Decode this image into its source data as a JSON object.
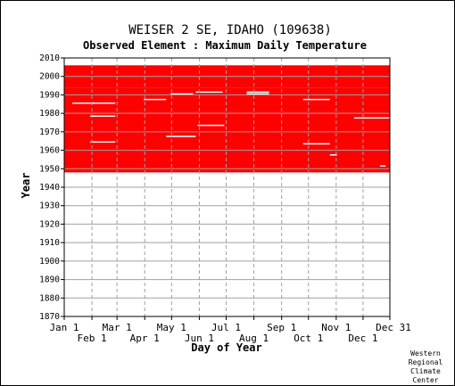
{
  "chart_data": {
    "type": "heatmap",
    "title": "WEISER 2 SE, IDAHO   (109638)",
    "subtitle": "Observed Element : Maximum Daily Temperature",
    "xlabel": "Day of Year",
    "ylabel": "Year",
    "ylim": [
      1870,
      2010
    ],
    "yticks": [
      1870,
      1880,
      1890,
      1900,
      1910,
      1920,
      1930,
      1940,
      1950,
      1960,
      1970,
      1980,
      1990,
      2000,
      2010
    ],
    "xlim": [
      1,
      365
    ],
    "xticks_top_row": [
      {
        "label": "Jan 1",
        "day": 1
      },
      {
        "label": "Mar 1",
        "day": 60
      },
      {
        "label": "May 1",
        "day": 121
      },
      {
        "label": "Jul 1",
        "day": 182
      },
      {
        "label": "Sep 1",
        "day": 244
      },
      {
        "label": "Nov 1",
        "day": 305
      },
      {
        "label": "Dec 31",
        "day": 365
      }
    ],
    "xticks_bottom_row": [
      {
        "label": "Feb 1",
        "day": 32
      },
      {
        "label": "Apr 1",
        "day": 91
      },
      {
        "label": "Jun 1",
        "day": 152
      },
      {
        "label": "Aug 1",
        "day": 213
      },
      {
        "label": "Oct 1",
        "day": 274
      },
      {
        "label": "Dec 1",
        "day": 335
      }
    ],
    "grid": true,
    "color_present": "#ff0000",
    "color_background": "#ffffff",
    "data_coverage": {
      "blocks": [
        {
          "start_year": 1948,
          "end_year": 1980,
          "start_day": 1,
          "end_day": 365
        },
        {
          "start_year": 1981,
          "end_year": 1993,
          "start_day": 1,
          "end_day": 365
        },
        {
          "start_year": 1994,
          "end_year": 2005,
          "start_day": 1,
          "end_day": 365
        }
      ],
      "missing_years": [
        1980.5,
        1993.5
      ],
      "gaps": [
        {
          "year": 1985,
          "start_day": 10,
          "end_day": 58
        },
        {
          "year": 1978,
          "start_day": 30,
          "end_day": 58
        },
        {
          "year": 1964,
          "start_day": 30,
          "end_day": 58
        },
        {
          "year": 1987,
          "start_day": 90,
          "end_day": 115
        },
        {
          "year": 1967,
          "start_day": 115,
          "end_day": 148
        },
        {
          "year": 1973,
          "start_day": 150,
          "end_day": 180
        },
        {
          "year": 1990,
          "start_day": 120,
          "end_day": 145
        },
        {
          "year": 1991,
          "start_day": 148,
          "end_day": 178
        },
        {
          "year": 1990,
          "start_day": 205,
          "end_day": 230
        },
        {
          "year": 1991,
          "start_day": 205,
          "end_day": 230
        },
        {
          "year": 1963,
          "start_day": 268,
          "end_day": 298
        },
        {
          "year": 1987,
          "start_day": 268,
          "end_day": 298
        },
        {
          "year": 1957,
          "start_day": 298,
          "end_day": 306
        },
        {
          "year": 1977,
          "start_day": 325,
          "end_day": 365
        },
        {
          "year": 1951,
          "start_day": 354,
          "end_day": 360
        },
        {
          "year": 2005,
          "start_day": 1,
          "end_day": 365,
          "partial": true
        }
      ]
    }
  },
  "credit": [
    "Western",
    "Regional",
    "Climate",
    "Center"
  ]
}
